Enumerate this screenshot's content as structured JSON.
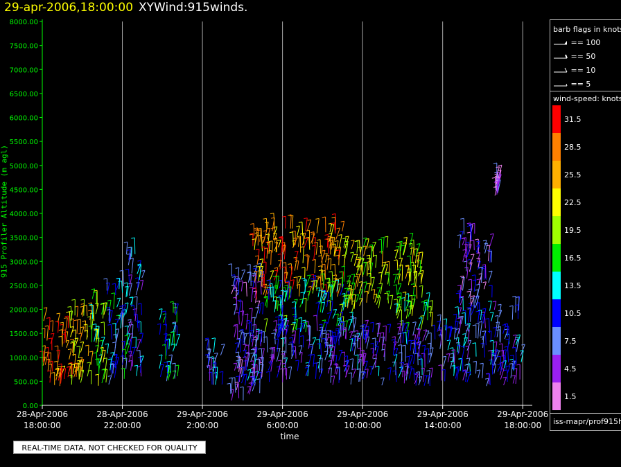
{
  "header": {
    "datetime": "29-apr-2006,18:00:00",
    "plot_name": "XYWind:915winds."
  },
  "legend": {
    "barb_title": "barb flags in knots",
    "barb_items": [
      "== 100",
      "== 50",
      "== 10",
      "== 5"
    ],
    "speed_title": "wind-speed: knots",
    "source_label": "iss-mapr/prof915h",
    "colors": [
      "#ff0000",
      "#ff8000",
      "#ffb000",
      "#ffff00",
      "#a0ff00",
      "#00ee00",
      "#00ffff",
      "#0000ff",
      "#6a8fff",
      "#9a20f0",
      "#ee82ee"
    ],
    "labels": [
      "31.5",
      "28.5",
      "25.5",
      "22.5",
      "19.5",
      "16.5",
      "13.5",
      "10.5",
      "7.5",
      "4.5",
      "1.5"
    ]
  },
  "footer": {
    "quality_notice": "REAL-TIME DATA, NOT CHECKED FOR QUALITY",
    "xaxis_title": "time"
  },
  "chart_data": {
    "type": "scatter",
    "title": "XYWind:915winds.",
    "ylabel": "915 Profiler Altitude (m agl)",
    "xlabel": "time",
    "ylim": [
      0,
      8000
    ],
    "yticks": [
      "0.00",
      "500.00",
      "1000.00",
      "1500.00",
      "2000.00",
      "2500.00",
      "3000.00",
      "3500.00",
      "4000.00",
      "4500.00",
      "5000.00",
      "5500.00",
      "6000.00",
      "6500.00",
      "7000.00",
      "7500.00",
      "8000.00"
    ],
    "xlim_hours": [
      0,
      24.2
    ],
    "xticks": [
      {
        "hour": 0,
        "line1": "28-Apr-2006",
        "line2": "18:00:00"
      },
      {
        "hour": 4,
        "line1": "28-Apr-2006",
        "line2": "22:00:00"
      },
      {
        "hour": 8,
        "line1": "29-Apr-2006",
        "line2": "2:00:00"
      },
      {
        "hour": 12,
        "line1": "29-Apr-2006",
        "line2": "6:00:00"
      },
      {
        "hour": 16,
        "line1": "29-Apr-2006",
        "line2": "10:00:00"
      },
      {
        "hour": 20,
        "line1": "29-Apr-2006",
        "line2": "14:00:00"
      },
      {
        "hour": 24,
        "line1": "29-Apr-2006",
        "line2": "18:00:00"
      }
    ],
    "grid": "vertical lines at major time ticks",
    "barb_segments": [
      {
        "t0": 0.0,
        "t1": 1.6,
        "alt0": 400,
        "alt1": 1800,
        "speed": 28
      },
      {
        "t0": 1.4,
        "t1": 2.6,
        "alt0": 400,
        "alt1": 2000,
        "speed": 24
      },
      {
        "t0": 2.4,
        "t1": 3.2,
        "alt0": 400,
        "alt1": 2300,
        "speed": 17
      },
      {
        "t0": 3.2,
        "t1": 4.2,
        "alt0": 400,
        "alt1": 2500,
        "speed": 11
      },
      {
        "t0": 4.2,
        "t1": 5.0,
        "alt0": 600,
        "alt1": 3200,
        "speed": 9
      },
      {
        "t0": 5.8,
        "t1": 6.8,
        "alt0": 500,
        "alt1": 2000,
        "speed": 13
      },
      {
        "t0": 8.2,
        "t1": 9.0,
        "alt0": 400,
        "alt1": 1200,
        "speed": 8
      },
      {
        "t0": 9.4,
        "t1": 11.0,
        "alt0": 100,
        "alt1": 2700,
        "speed": 6
      },
      {
        "t0": 10.5,
        "t1": 15.0,
        "alt0": 2200,
        "alt1": 3700,
        "speed": 27
      },
      {
        "t0": 11.0,
        "t1": 15.5,
        "alt0": 1500,
        "alt1": 2500,
        "speed": 15
      },
      {
        "t0": 10.0,
        "t1": 20.5,
        "alt0": 400,
        "alt1": 1600,
        "speed": 8
      },
      {
        "t0": 15.0,
        "t1": 19.0,
        "alt0": 2000,
        "alt1": 3300,
        "speed": 21
      },
      {
        "t0": 17.5,
        "t1": 19.5,
        "alt0": 1500,
        "alt1": 2200,
        "speed": 18
      },
      {
        "t0": 20.5,
        "t1": 24.0,
        "alt0": 400,
        "alt1": 2000,
        "speed": 9
      },
      {
        "t0": 20.8,
        "t1": 22.5,
        "alt0": 2000,
        "alt1": 3600,
        "speed": 6
      },
      {
        "t0": 22.6,
        "t1": 22.8,
        "alt0": 4350,
        "alt1": 4800,
        "speed": 5
      }
    ]
  }
}
